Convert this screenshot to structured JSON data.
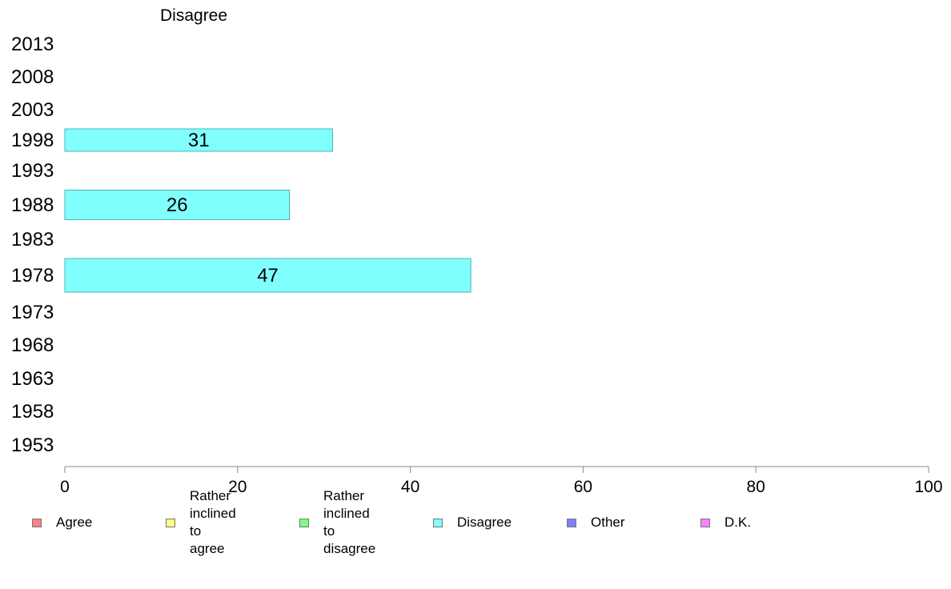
{
  "chart_data": {
    "type": "bar",
    "orientation": "horizontal",
    "title": "Disagree",
    "categories": [
      "2013",
      "2008",
      "2003",
      "1998",
      "1993",
      "1988",
      "1983",
      "1978",
      "1973",
      "1968",
      "1963",
      "1958",
      "1953"
    ],
    "series": [
      {
        "name": "Disagree",
        "values": [
          null,
          null,
          null,
          31,
          null,
          26,
          null,
          47,
          null,
          null,
          null,
          null,
          null
        ]
      }
    ],
    "xlim": [
      0,
      100
    ],
    "xticks": [
      0,
      20,
      40,
      60,
      80,
      100
    ],
    "grid": false,
    "legend_placement": "bottom",
    "colors": {
      "bar_fill": "#80ffff",
      "bar_stroke": "#4fb3b3",
      "axis": "#888888"
    }
  },
  "legend": [
    {
      "label": "Agree",
      "color": "#ff8080"
    },
    {
      "label": "Rather inclined\nto agree",
      "color": "#ffff80"
    },
    {
      "label": "Rather inclined\nto disagree",
      "color": "#80ff80"
    },
    {
      "label": "Disagree",
      "color": "#80ffff"
    },
    {
      "label": "Other",
      "color": "#8080ff"
    },
    {
      "label": "D.K.",
      "color": "#ff80ff"
    }
  ]
}
